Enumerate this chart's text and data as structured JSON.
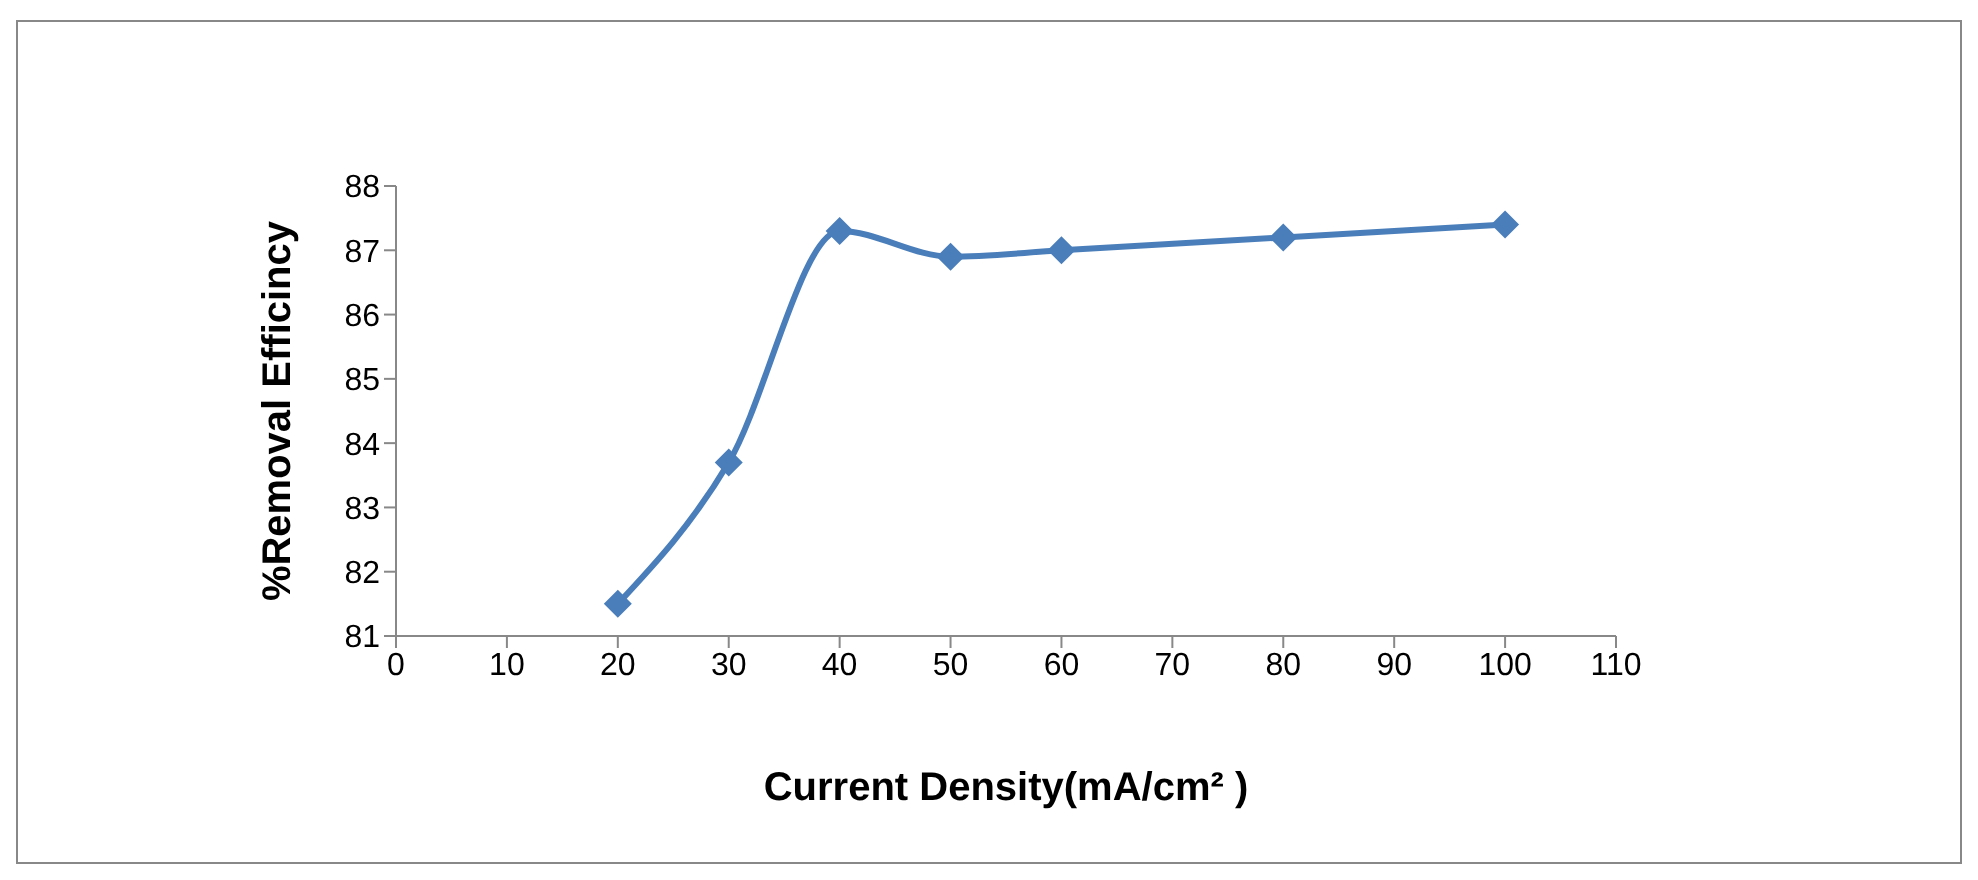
{
  "chart_data": {
    "type": "line",
    "xlabel": "Current Density(mA/cm² )",
    "ylabel": "%Removal Efficincy",
    "x": [
      20,
      30,
      40,
      50,
      60,
      80,
      100
    ],
    "series": [
      {
        "color": "#4a7ebb",
        "values": [
          81.5,
          83.7,
          87.3,
          86.9,
          87.0,
          87.2,
          87.4
        ]
      }
    ],
    "xlim": [
      0,
      110
    ],
    "xticks": [
      0,
      10,
      20,
      30,
      40,
      50,
      60,
      70,
      80,
      90,
      100,
      110
    ],
    "ylim": [
      81,
      88
    ],
    "yticks": [
      81,
      82,
      83,
      84,
      85,
      86,
      87,
      88
    ],
    "grid": false,
    "legend": false,
    "marker": "diamond",
    "line_style": "solid"
  }
}
